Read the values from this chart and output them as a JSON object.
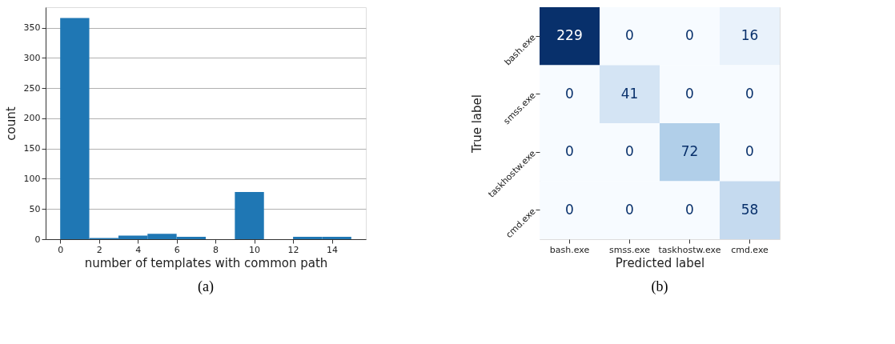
{
  "chart_data": [
    {
      "type": "histogram",
      "xlabel": "number of templates with common path",
      "ylabel": "count",
      "bins": [
        0,
        1.5,
        3,
        4.5,
        6,
        7.5,
        9,
        10.5,
        12,
        13.5,
        15
      ],
      "values": [
        366,
        2,
        6,
        9,
        4,
        0,
        78,
        0,
        4,
        4
      ],
      "color": "#1f77b4",
      "xlim": [
        -0.75,
        15.75
      ],
      "xticks": [
        0,
        2,
        4,
        6,
        8,
        10,
        12,
        14
      ],
      "ylim": [
        0,
        384
      ],
      "yticks": [
        0,
        50,
        100,
        150,
        200,
        250,
        300,
        350
      ],
      "grid": "y",
      "annotations": [
        "(a)"
      ]
    },
    {
      "type": "heatmap",
      "xlabel": "Predicted label",
      "ylabel": "True label",
      "categories": [
        "bash.exe",
        "smss.exe",
        "taskhostw.exe",
        "cmd.exe"
      ],
      "y_categories": [
        "bash.exe",
        "smss.exe",
        "taskhostw.exe",
        "cmd.exe"
      ],
      "cells": [
        [
          229,
          0,
          0,
          16
        ],
        [
          0,
          41,
          0,
          0
        ],
        [
          0,
          0,
          72,
          0
        ],
        [
          0,
          0,
          0,
          58
        ]
      ],
      "data_labels": true,
      "annotations": [
        "(b)"
      ]
    }
  ]
}
